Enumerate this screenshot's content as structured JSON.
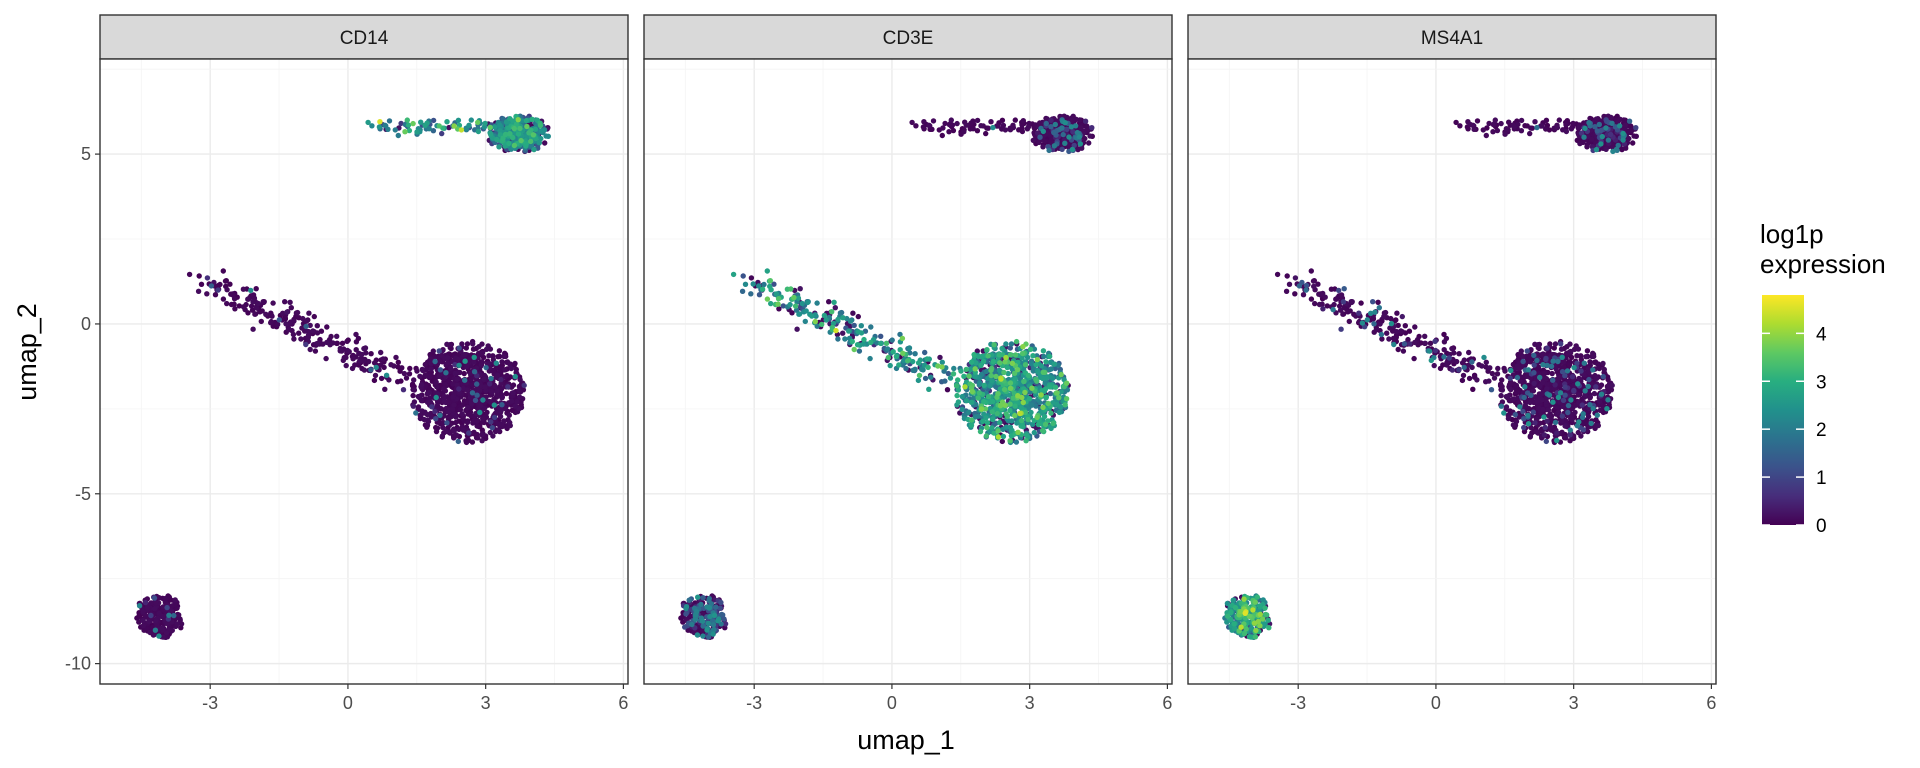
{
  "chart_data": {
    "type": "scatter",
    "xlabel": "umap_1",
    "ylabel": "umap_2",
    "xlim": [
      -5.4,
      6.1
    ],
    "ylim": [
      -10.6,
      7.8
    ],
    "x_ticks": [
      -3,
      0,
      3,
      6
    ],
    "y_ticks": [
      -10,
      -5,
      0,
      5
    ],
    "x_tick_labels": [
      "-3",
      "0",
      "3",
      "6"
    ],
    "y_tick_labels": [
      "-10",
      "-5",
      "0",
      "5"
    ],
    "grid": true,
    "facets": [
      "CD14",
      "CD3E",
      "MS4A1"
    ],
    "color_scale": {
      "name": "viridis",
      "title": "log1p\nexpression",
      "title_lines": [
        "log1p",
        "expression"
      ],
      "min": 0,
      "max": 4.8,
      "breaks": [
        0,
        1,
        2,
        3,
        4
      ],
      "break_labels": [
        "0",
        "1",
        "2",
        "3",
        "4"
      ],
      "colors": [
        "#440154",
        "#472d7b",
        "#3b528b",
        "#2c728e",
        "#21918c",
        "#28ae80",
        "#5ec962",
        "#addc30",
        "#fde725"
      ]
    },
    "clusters": [
      {
        "name": "upper",
        "center": [
          3.7,
          5.6
        ],
        "spread": [
          0.7,
          0.55
        ],
        "n": 380,
        "tail": {
          "from": [
            0.5,
            5.85
          ],
          "to": [
            3.0,
            5.8
          ],
          "n": 70,
          "jitter": 0.18
        },
        "expression": {
          "CD14": 2.2,
          "CD3E": 0.08,
          "MS4A1": 0.08
        }
      },
      {
        "name": "middle",
        "center": [
          2.6,
          -2.0
        ],
        "spread": [
          1.25,
          1.5
        ],
        "n": 900,
        "tail": {
          "from": [
            -3.1,
            1.25
          ],
          "to": [
            1.2,
            -1.6
          ],
          "n": 240,
          "jitter": 0.35
        },
        "expression": {
          "CD14": 0.05,
          "CD3E": 2.3,
          "MS4A1": 0.1
        }
      },
      {
        "name": "lower",
        "center": [
          -4.1,
          -8.6
        ],
        "spread": [
          0.55,
          0.65
        ],
        "n": 260,
        "expression": {
          "CD14": 0.03,
          "CD3E": 0.35,
          "MS4A1": 2.6
        }
      }
    ]
  }
}
